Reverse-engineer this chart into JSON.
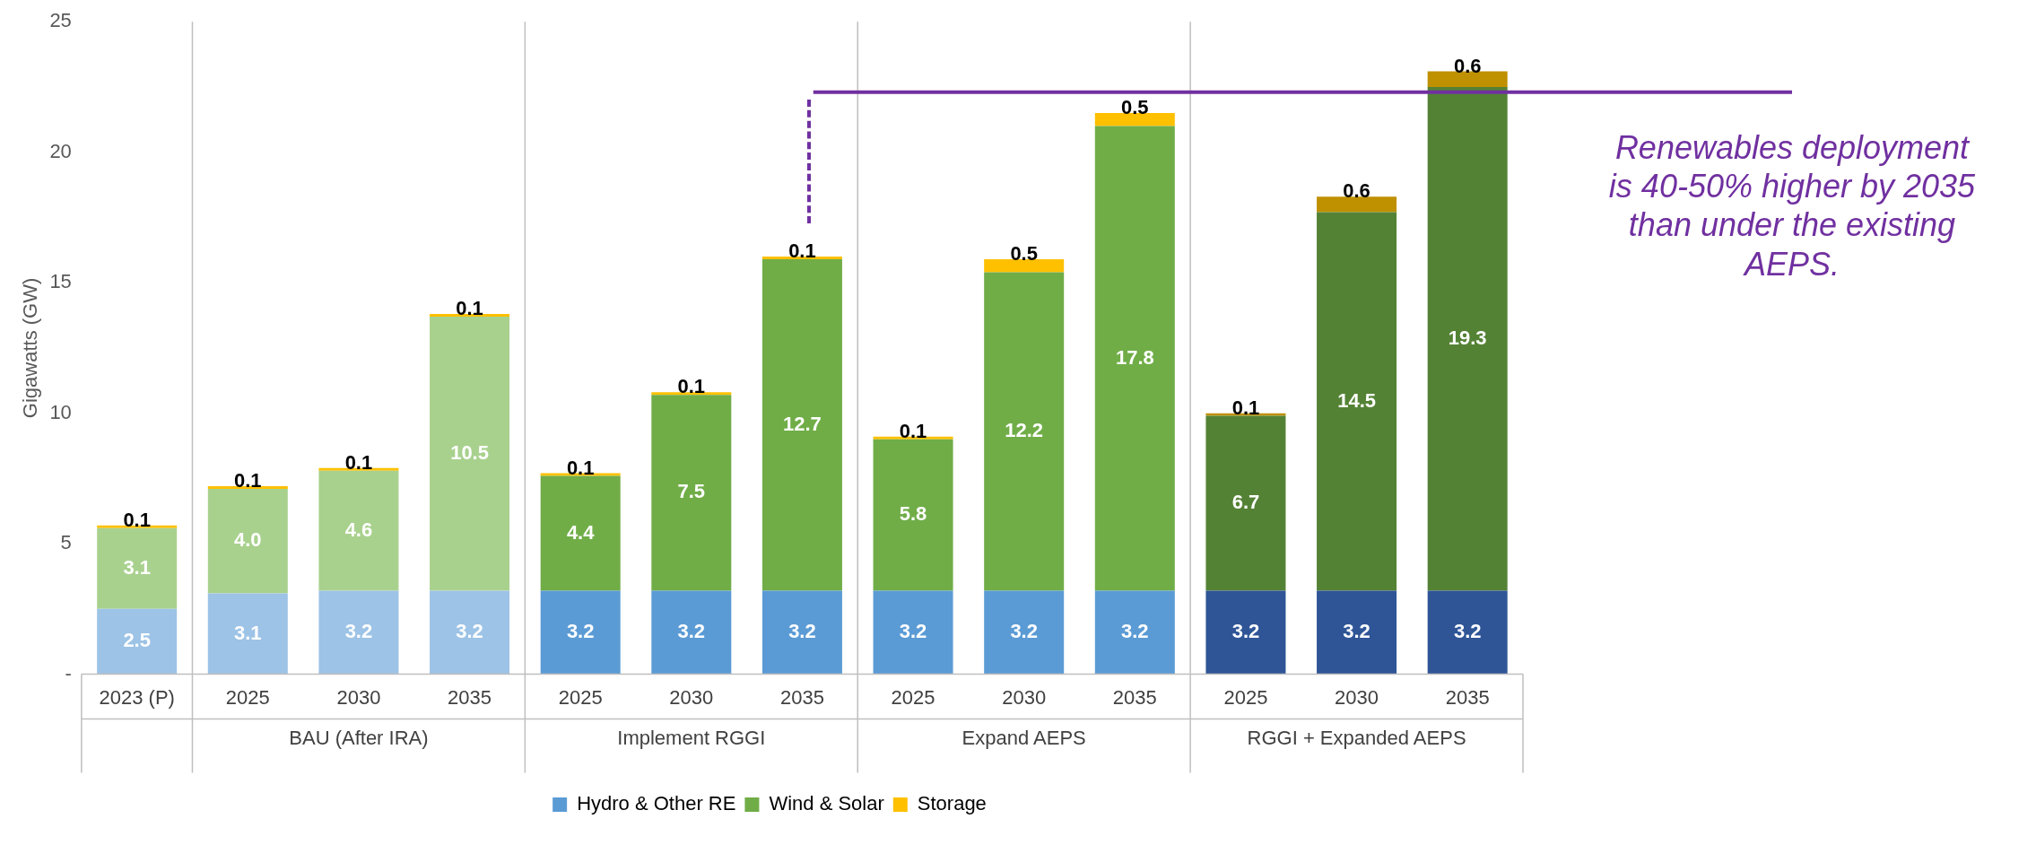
{
  "chart_data": {
    "type": "bar",
    "stacked": true,
    "ylabel": "Gigawatts (GW)",
    "categories": [
      "2023 (P)",
      "2025",
      "2030",
      "2035",
      "2025",
      "2030",
      "2035",
      "2025",
      "2030",
      "2035",
      "2025",
      "2030",
      "2035"
    ],
    "series": [
      {
        "name": "Hydro & Other RE",
        "color": "#5b9bd5",
        "colors": [
          "#9dc3e6",
          "#9dc3e6",
          "#9dc3e6",
          "#9dc3e6",
          "#5b9bd5",
          "#5b9bd5",
          "#5b9bd5",
          "#5b9bd5",
          "#5b9bd5",
          "#5b9bd5",
          "#2f5597",
          "#2f5597",
          "#2f5597"
        ],
        "values": [
          2.5,
          3.1,
          3.2,
          3.2,
          3.2,
          3.2,
          3.2,
          3.2,
          3.2,
          3.2,
          3.2,
          3.2,
          3.2
        ],
        "value_labels": [
          "2.5",
          "3.1",
          "3.2",
          "3.2",
          "3.2",
          "3.2",
          "3.2",
          "3.2",
          "3.2",
          "3.2",
          "3.2",
          "3.2",
          "3.2"
        ]
      },
      {
        "name": "Wind & Solar",
        "color": "#70ad47",
        "colors": [
          "#a9d18e",
          "#a9d18e",
          "#a9d18e",
          "#a9d18e",
          "#70ad47",
          "#70ad47",
          "#70ad47",
          "#70ad47",
          "#70ad47",
          "#70ad47",
          "#548235",
          "#548235",
          "#548235"
        ],
        "values": [
          3.1,
          4.0,
          4.6,
          10.5,
          4.4,
          7.5,
          12.7,
          5.8,
          12.2,
          17.8,
          6.7,
          14.5,
          19.3
        ],
        "value_labels": [
          "3.1",
          "4.0",
          "4.6",
          "10.5",
          "4.4",
          "7.5",
          "12.7",
          "5.8",
          "12.2",
          "17.8",
          "6.7",
          "14.5",
          "19.3"
        ]
      },
      {
        "name": "Storage",
        "color": "#ffc000",
        "colors": [
          "#ffc000",
          "#ffc000",
          "#ffc000",
          "#ffc000",
          "#ffc000",
          "#ffc000",
          "#ffc000",
          "#ffc000",
          "#ffc000",
          "#ffc000",
          "#bf9000",
          "#bf9000",
          "#bf9000"
        ],
        "values": [
          0.1,
          0.1,
          0.1,
          0.1,
          0.1,
          0.1,
          0.1,
          0.1,
          0.5,
          0.5,
          0.1,
          0.6,
          0.6
        ],
        "value_labels": [
          "0.1",
          "0.1",
          "0.1",
          "0.1",
          "0.1",
          "0.1",
          "0.1",
          "0.1",
          "0.5",
          "0.5",
          "0.1",
          "0.6",
          "0.6"
        ]
      }
    ],
    "ylim": [
      0,
      25
    ],
    "yticks": [
      {
        "value": 0,
        "label": "-"
      },
      5,
      10,
      15,
      20,
      25
    ],
    "grid": false,
    "legend": "bottom",
    "ref_lines": [
      {
        "axis": "y",
        "value": 22.3,
        "color": "#7030a0"
      }
    ],
    "annotations": [
      "Renewables deployment is 40-50% higher by 2035 than under the existing AEPS.",
      "BAU (After IRA)",
      "Implement RGGI",
      "Expand AEPS",
      "RGGI + Expanded AEPS"
    ]
  }
}
